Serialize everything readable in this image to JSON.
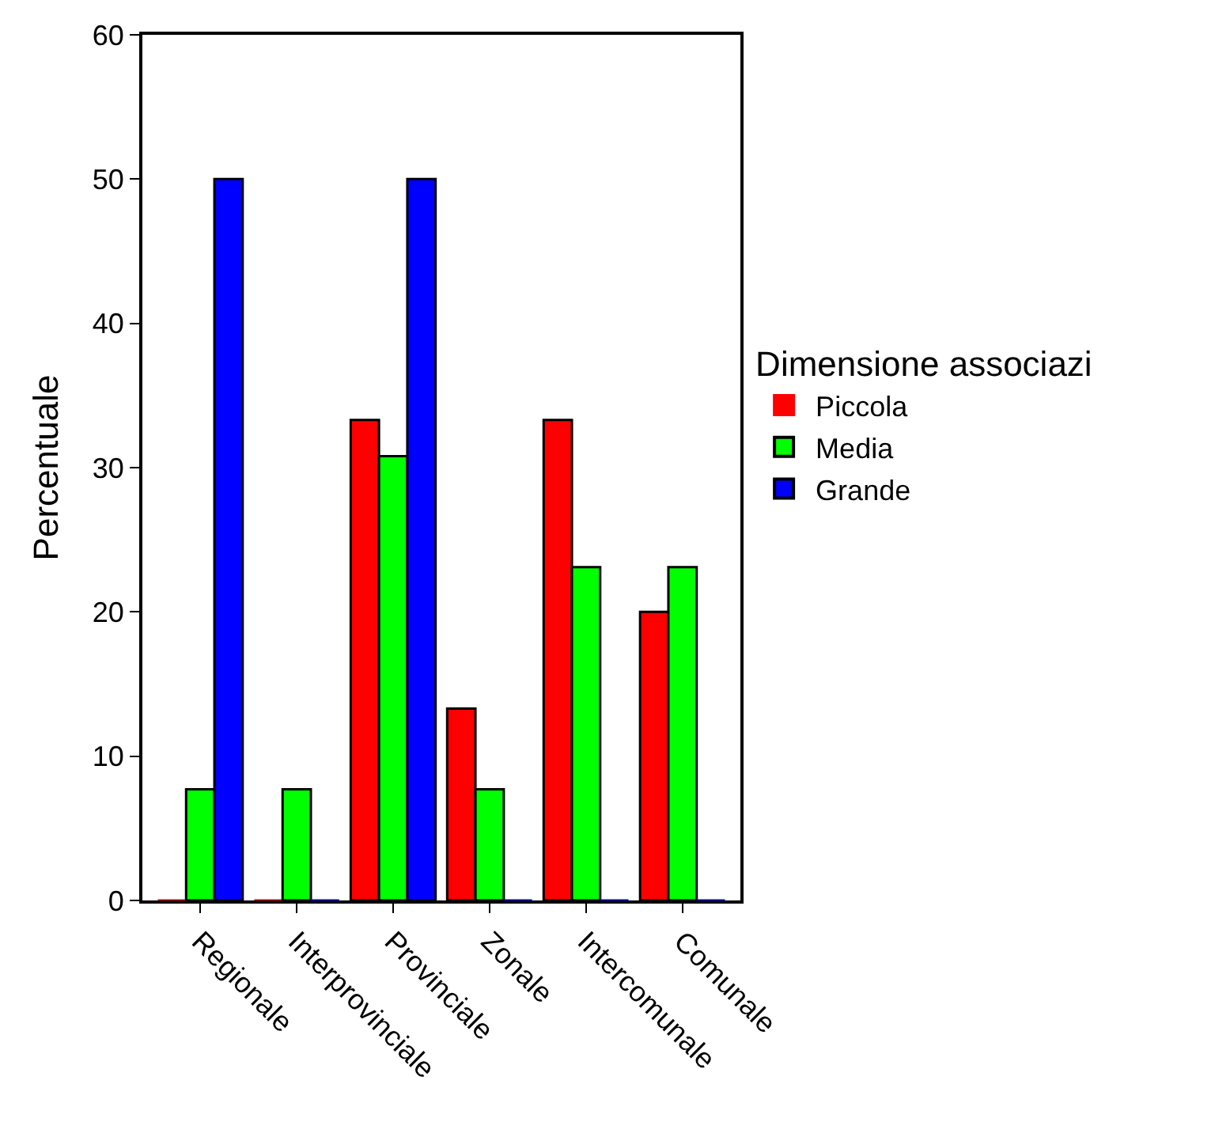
{
  "chart_data": {
    "type": "bar",
    "ylabel": "Percentuale",
    "legend_title": "Dimensione associazi",
    "categories": [
      "Regionale",
      "Interprovinciale",
      "Provinciale",
      "Zonale",
      "Intercomunale",
      "Comunale"
    ],
    "series": [
      {
        "name": "Piccola",
        "color": "#ff0000",
        "values": [
          0,
          0,
          33.3,
          13.3,
          33.3,
          20
        ]
      },
      {
        "name": "Media",
        "color": "#00ff00",
        "values": [
          7.7,
          7.7,
          30.8,
          7.7,
          23.1,
          23.1
        ]
      },
      {
        "name": "Grande",
        "color": "#0000ff",
        "values": [
          50,
          0,
          50,
          0,
          0,
          0
        ]
      }
    ],
    "ylim": [
      0,
      60
    ],
    "yticks": [
      0,
      10,
      20,
      30,
      40,
      50,
      60
    ],
    "legend": "right"
  }
}
